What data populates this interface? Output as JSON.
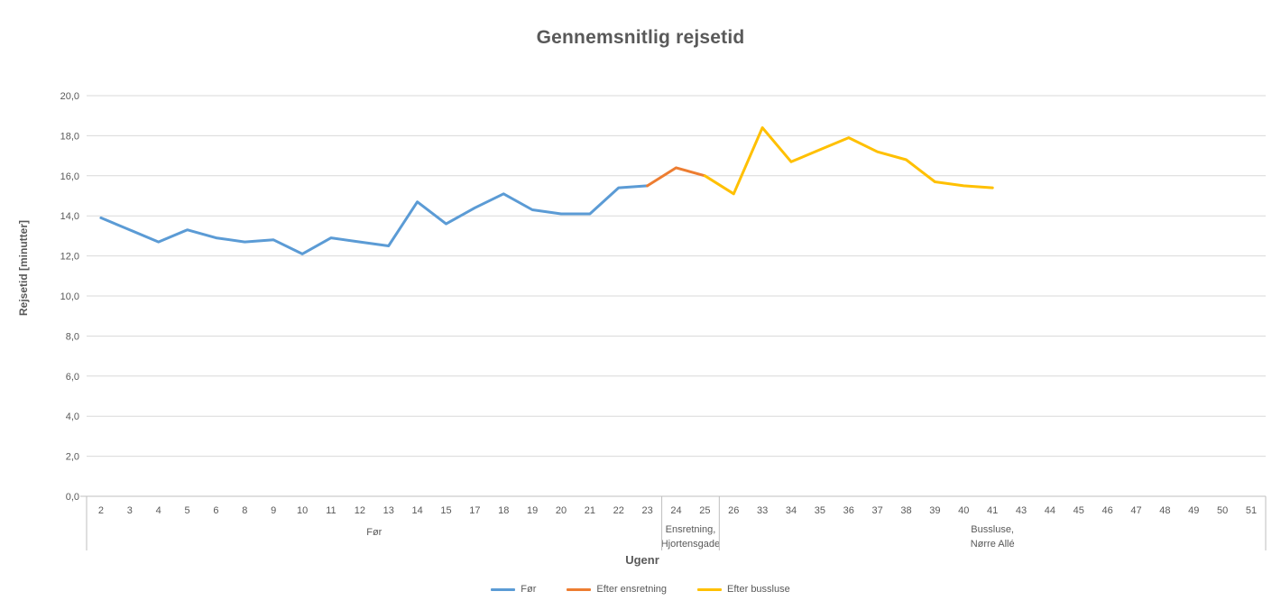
{
  "chart_data": {
    "type": "line",
    "title": "Gennemsnitlig rejsetid",
    "xlabel": "Ugenr",
    "ylabel": "Rejsetid [minutter]",
    "ylim": [
      0,
      20
    ],
    "ytick_step": 2,
    "ytick_labels": [
      "0,0",
      "2,0",
      "4,0",
      "6,0",
      "8,0",
      "10,0",
      "12,0",
      "14,0",
      "16,0",
      "18,0",
      "20,0"
    ],
    "grid": true,
    "legend_position": "bottom",
    "categories": [
      "2",
      "3",
      "4",
      "5",
      "6",
      "8",
      "9",
      "10",
      "11",
      "12",
      "13",
      "14",
      "15",
      "17",
      "18",
      "19",
      "20",
      "21",
      "22",
      "23",
      "24",
      "25",
      "26",
      "33",
      "34",
      "35",
      "36",
      "37",
      "38",
      "39",
      "40",
      "41",
      "43",
      "44",
      "45",
      "46",
      "47",
      "48",
      "49",
      "50",
      "51"
    ],
    "series": [
      {
        "name": "Før",
        "color": "#5B9BD5",
        "values": [
          13.9,
          13.3,
          12.7,
          13.3,
          12.9,
          12.7,
          12.8,
          12.1,
          12.9,
          12.7,
          12.5,
          14.7,
          13.6,
          14.4,
          15.1,
          14.3,
          14.1,
          14.1,
          15.4,
          15.5,
          null,
          null,
          null,
          null,
          null,
          null,
          null,
          null,
          null,
          null,
          null,
          null,
          null,
          null,
          null,
          null,
          null,
          null,
          null,
          null,
          null
        ]
      },
      {
        "name": "Efter ensretning",
        "color": "#ED7D31",
        "values": [
          null,
          null,
          null,
          null,
          null,
          null,
          null,
          null,
          null,
          null,
          null,
          null,
          null,
          null,
          null,
          null,
          null,
          null,
          null,
          15.5,
          16.4,
          16.0,
          null,
          null,
          null,
          null,
          null,
          null,
          null,
          null,
          null,
          null,
          null,
          null,
          null,
          null,
          null,
          null,
          null,
          null,
          null
        ]
      },
      {
        "name": "Efter bussluse",
        "color": "#FFC000",
        "values": [
          null,
          null,
          null,
          null,
          null,
          null,
          null,
          null,
          null,
          null,
          null,
          null,
          null,
          null,
          null,
          null,
          null,
          null,
          null,
          null,
          null,
          16.0,
          15.1,
          18.4,
          16.7,
          17.3,
          17.9,
          17.2,
          16.8,
          15.7,
          15.5,
          15.4,
          null,
          null,
          null,
          null,
          null,
          null,
          null,
          null,
          null
        ]
      }
    ],
    "axis_groups": [
      {
        "label_lines": [
          "Før"
        ],
        "from": "2",
        "to": "23"
      },
      {
        "label_lines": [
          "Ensretning,",
          "Hjortensgade"
        ],
        "from": "24",
        "to": "25"
      },
      {
        "label_lines": [
          "Bussluse,",
          "Nørre Allé"
        ],
        "from": "26",
        "to": "51"
      }
    ]
  },
  "colors": {
    "title_text": "#595959",
    "axis_text": "#595959",
    "gridline": "#D9D9D9",
    "axis_line": "#BFBFBF"
  }
}
